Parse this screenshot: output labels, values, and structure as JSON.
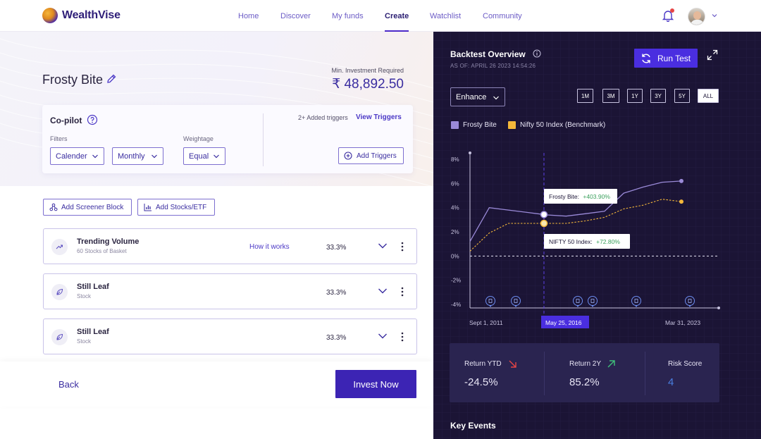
{
  "app": {
    "name": "WealthVise"
  },
  "nav": {
    "links": [
      {
        "label": "Home",
        "active": false
      },
      {
        "label": "Discover",
        "active": false
      },
      {
        "label": "My funds",
        "active": false
      },
      {
        "label": "Create",
        "active": true
      },
      {
        "label": "Watchlist",
        "active": false
      },
      {
        "label": "Community",
        "active": false
      }
    ]
  },
  "portfolio": {
    "name": "Frosty Bite",
    "min_investment_label": "Min. Investment Required",
    "min_investment_value": "₹ 48,892.50"
  },
  "copilot": {
    "title": "Co-pilot",
    "filters_label": "Filters",
    "filter_1": "Calender",
    "filter_2": "Monthly",
    "weightage_label": "Weightage",
    "weightage": "Equal",
    "triggers_added": "2+ Added triggers",
    "view_triggers": "View Triggers",
    "add_triggers": "Add Triggers"
  },
  "actions": {
    "add_screener": "Add Screener Block",
    "add_stocks": "Add Stocks/ETF"
  },
  "blocks": [
    {
      "title": "Trending Volume",
      "subtitle": "60 Stocks of Basket",
      "how": "How it works",
      "pct": "33.3%",
      "icon": "trending-up-icon"
    },
    {
      "title": "Still Leaf",
      "subtitle": "Stock",
      "how": "",
      "pct": "33.3%",
      "icon": "leaf-icon"
    },
    {
      "title": "Still Leaf",
      "subtitle": "Stock",
      "how": "",
      "pct": "33.3%",
      "icon": "leaf-icon"
    }
  ],
  "footer": {
    "back": "Back",
    "invest": "Invest Now"
  },
  "backtest": {
    "title": "Backtest Overview",
    "as_of": "AS OF: APRIL 26 2023 14:54:26",
    "run_test": "Run Test",
    "enhance": "Enhance",
    "periods": [
      "1M",
      "3M",
      "1Y",
      "3Y",
      "5Y",
      "ALL"
    ],
    "active_period": "ALL",
    "legend": [
      {
        "label": "Frosty Bite",
        "color": "#9a8ad8"
      },
      {
        "label": "Nifty 50 Index (Benchmark)",
        "color": "#f4b73a"
      }
    ],
    "tooltip_1_label": "Frosty Bite:",
    "tooltip_1_value": "+403.90%",
    "tooltip_2_label": "NIFTY 50 Index:",
    "tooltip_2_value": "+72.80%",
    "x_start": "Sept 1, 2011",
    "x_marker": "May 25, 2016",
    "x_end": "Mar 31, 2023",
    "key_events": "Key Events"
  },
  "chart_data": {
    "type": "line",
    "y_ticks": [
      "8%",
      "6%",
      "4%",
      "2%",
      "0%",
      "-2%",
      "-4%"
    ],
    "ylim": [
      -4,
      8
    ],
    "x_labels": [
      "Sept 1, 2011",
      "May 25, 2016",
      "Mar 31, 2023"
    ],
    "series": [
      {
        "name": "Frosty Bite",
        "values": [
          1.2,
          4.0,
          3.8,
          3.6,
          3.4,
          3.3,
          3.5,
          3.7,
          5.2,
          5.7,
          6.1,
          6.2
        ]
      },
      {
        "name": "Nifty 50 Index (Benchmark)",
        "values": [
          0.4,
          1.9,
          2.7,
          2.7,
          2.7,
          2.7,
          2.9,
          3.2,
          3.9,
          4.2,
          4.7,
          4.5
        ]
      }
    ],
    "event_marker_count": 7,
    "grid": true
  },
  "stats": [
    {
      "label": "Return YTD",
      "value": "-24.5%",
      "trend": "down"
    },
    {
      "label": "Return 2Y",
      "value": "85.2%",
      "trend": "up"
    },
    {
      "label": "Risk Score",
      "value": "4",
      "trend": ""
    }
  ]
}
